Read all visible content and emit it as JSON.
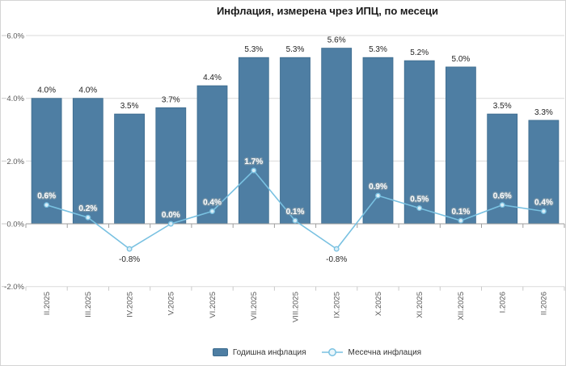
{
  "chart_data": {
    "type": "combo_bar_line",
    "title": "Инфлация, измерена чрез ИПЦ, по месеци",
    "categories": [
      "II.2025",
      "III.2025",
      "IV.2025",
      "V.2025",
      "VI.2025",
      "VII.2025",
      "VIII.2025",
      "IX.2025",
      "X.2025",
      "XI.2025",
      "XII.2025",
      "I.2026",
      "II.2026"
    ],
    "series": [
      {
        "name": "Годишна инфлация",
        "kind": "bar",
        "color": "#4e7ea3",
        "border_color": "#3c6b8e",
        "values": [
          4.0,
          4.0,
          3.5,
          3.7,
          4.4,
          5.3,
          5.3,
          5.6,
          5.3,
          5.2,
          5.0,
          3.5,
          3.3
        ],
        "labels": [
          "4.0%",
          "4.0%",
          "3.5%",
          "3.7%",
          "4.4%",
          "5.3%",
          "5.3%",
          "5.6%",
          "5.3%",
          "5.2%",
          "5.0%",
          "3.5%",
          "3.3%"
        ]
      },
      {
        "name": "Месечна инфлация",
        "kind": "line",
        "color": "#79c1e1",
        "marker_fill": "#d9eef8",
        "values": [
          0.6,
          0.2,
          -0.8,
          0.0,
          0.4,
          1.7,
          0.1,
          -0.8,
          0.9,
          0.5,
          0.1,
          0.6,
          0.4
        ],
        "labels": [
          "0.6%",
          "0.2%",
          "-0.8%",
          "0.0%",
          "0.4%",
          "1.7%",
          "0.1%",
          "-0.8%",
          "0.9%",
          "0.5%",
          "0.1%",
          "0.6%",
          "0.4%"
        ]
      }
    ],
    "y_axis": {
      "min": -2,
      "max": 6,
      "ticks": [
        6,
        4,
        2,
        0,
        -2
      ],
      "tick_labels": [
        "6.0%",
        "4.0%",
        "2.0%",
        "0.0%",
        "-2.0%"
      ]
    },
    "grid": true,
    "legend_position": "bottom",
    "colors": {
      "gridline": "#dadada",
      "axis": "#9e9e9e",
      "bottom_axis": "#c9c9c9",
      "tick": "#9e9e9e"
    }
  }
}
